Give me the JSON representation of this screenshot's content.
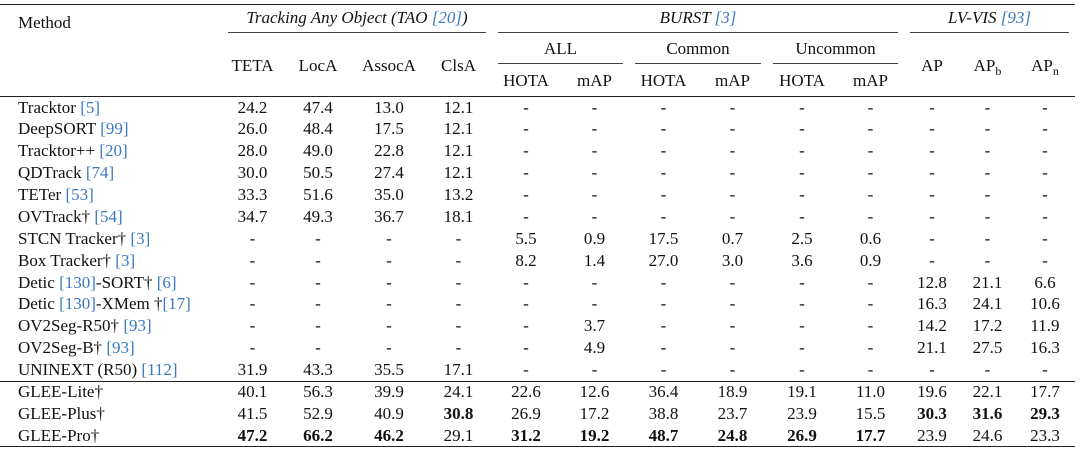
{
  "table": {
    "header": {
      "method": "Method",
      "groups": [
        {
          "title": [
            "Tracking Any Object (TAO ",
            "[20]",
            ")"
          ],
          "columns": [
            {
              "text": "TETA"
            },
            {
              "text": "LocA"
            },
            {
              "text": "AssocA"
            },
            {
              "text": "ClsA"
            }
          ]
        },
        {
          "title": [
            "BURST ",
            "[3]"
          ],
          "subgroups": [
            {
              "title": "ALL",
              "columns": [
                {
                  "text": "HOTA"
                },
                {
                  "text": "mAP"
                }
              ]
            },
            {
              "title": "Common",
              "columns": [
                {
                  "text": "HOTA"
                },
                {
                  "text": "mAP"
                }
              ]
            },
            {
              "title": "Uncommon",
              "columns": [
                {
                  "text": "HOTA"
                },
                {
                  "text": "mAP"
                }
              ]
            }
          ]
        },
        {
          "title": [
            "LV-VIS ",
            "[93]"
          ],
          "columns": [
            {
              "text": "AP"
            },
            {
              "text": "AP",
              "sub": "b"
            },
            {
              "text": "AP",
              "sub": "n"
            }
          ]
        }
      ]
    },
    "body": [
      [
        {
          "method": [
            "Tracktor ",
            "[5]"
          ],
          "cells": [
            "24.2",
            "47.4",
            "13.0",
            "12.1",
            "-",
            "-",
            "-",
            "-",
            "-",
            "-",
            "-",
            "-",
            "-"
          ]
        },
        {
          "method": [
            "DeepSORT ",
            "[99]"
          ],
          "cells": [
            "26.0",
            "48.4",
            "17.5",
            "12.1",
            "-",
            "-",
            "-",
            "-",
            "-",
            "-",
            "-",
            "-",
            "-"
          ]
        },
        {
          "method": [
            "Tracktor++ ",
            "[20]"
          ],
          "cells": [
            "28.0",
            "49.0",
            "22.8",
            "12.1",
            "-",
            "-",
            "-",
            "-",
            "-",
            "-",
            "-",
            "-",
            "-"
          ]
        },
        {
          "method": [
            "QDTrack ",
            "[74]"
          ],
          "cells": [
            "30.0",
            "50.5",
            "27.4",
            "12.1",
            "-",
            "-",
            "-",
            "-",
            "-",
            "-",
            "-",
            "-",
            "-"
          ]
        },
        {
          "method": [
            "TETer ",
            "[53]"
          ],
          "cells": [
            "33.3",
            "51.6",
            "35.0",
            "13.2",
            "-",
            "-",
            "-",
            "-",
            "-",
            "-",
            "-",
            "-",
            "-"
          ]
        },
        {
          "method": [
            "OVTrack†  ",
            "[54]"
          ],
          "cells": [
            "34.7",
            "49.3",
            "36.7",
            "18.1",
            "-",
            "-",
            "-",
            "-",
            "-",
            "-",
            "-",
            "-",
            "-"
          ]
        },
        {
          "method": [
            "STCN Tracker† ",
            "[3]"
          ],
          "cells": [
            "-",
            "-",
            "-",
            "-",
            "5.5",
            "0.9",
            "17.5",
            "0.7",
            "2.5",
            "0.6",
            "-",
            "-",
            "-"
          ]
        },
        {
          "method": [
            "Box Tracker† ",
            "[3]"
          ],
          "cells": [
            "-",
            "-",
            "-",
            "-",
            "8.2",
            "1.4",
            "27.0",
            "3.0",
            "3.6",
            "0.9",
            "-",
            "-",
            "-"
          ]
        },
        {
          "method": [
            "Detic ",
            "[130]",
            "-SORT† ",
            "[6]"
          ],
          "cells": [
            "-",
            "-",
            "-",
            "-",
            "-",
            "-",
            "-",
            "-",
            "-",
            "-",
            "12.8",
            "21.1",
            "6.6"
          ]
        },
        {
          "method": [
            "Detic ",
            "[130]",
            "-XMem †",
            "[17]"
          ],
          "cells": [
            "-",
            "-",
            "-",
            "-",
            "-",
            "-",
            "-",
            "-",
            "-",
            "-",
            "16.3",
            "24.1",
            "10.6"
          ]
        },
        {
          "method": [
            "OV2Seg-R50† ",
            "[93]"
          ],
          "cells": [
            "-",
            "-",
            "-",
            "-",
            "-",
            "3.7",
            "-",
            "-",
            "-",
            "-",
            "14.2",
            "17.2",
            "11.9"
          ]
        },
        {
          "method": [
            "OV2Seg-B† ",
            "[93]"
          ],
          "cells": [
            "-",
            "-",
            "-",
            "-",
            "-",
            "4.9",
            "-",
            "-",
            "-",
            "-",
            "21.1",
            "27.5",
            "16.3"
          ]
        },
        {
          "method": [
            "UNINEXT (R50) ",
            "[112]"
          ],
          "cells": [
            "31.9",
            "43.3",
            "35.5",
            "17.1",
            "-",
            "-",
            "-",
            "-",
            "-",
            "-",
            "-",
            "-",
            "-"
          ]
        }
      ],
      [
        {
          "method": [
            "GLEE-Lite†"
          ],
          "cells": [
            "40.1",
            "56.3",
            "39.9",
            "24.1",
            "22.6",
            "12.6",
            "36.4",
            "18.9",
            "19.1",
            "11.0",
            "19.6",
            "22.1",
            "17.7"
          ]
        },
        {
          "method": [
            "GLEE-Plus†"
          ],
          "cells": [
            "41.5",
            "52.9",
            "40.9",
            {
              "text": "30.8",
              "bold": true
            },
            "26.9",
            "17.2",
            "38.8",
            "23.7",
            "23.9",
            "15.5",
            {
              "text": "30.3",
              "bold": true
            },
            {
              "text": "31.6",
              "bold": true
            },
            {
              "text": "29.3",
              "bold": true
            }
          ]
        },
        {
          "method": [
            "GLEE-Pro†"
          ],
          "cells": [
            {
              "text": "47.2",
              "bold": true
            },
            {
              "text": "66.2",
              "bold": true
            },
            {
              "text": "46.2",
              "bold": true
            },
            "29.1",
            {
              "text": "31.2",
              "bold": true
            },
            {
              "text": "19.2",
              "bold": true
            },
            {
              "text": "48.7",
              "bold": true
            },
            {
              "text": "24.8",
              "bold": true
            },
            {
              "text": "26.9",
              "bold": true
            },
            {
              "text": "17.7",
              "bold": true
            },
            "23.9",
            "24.6",
            "23.3"
          ]
        }
      ]
    ]
  }
}
